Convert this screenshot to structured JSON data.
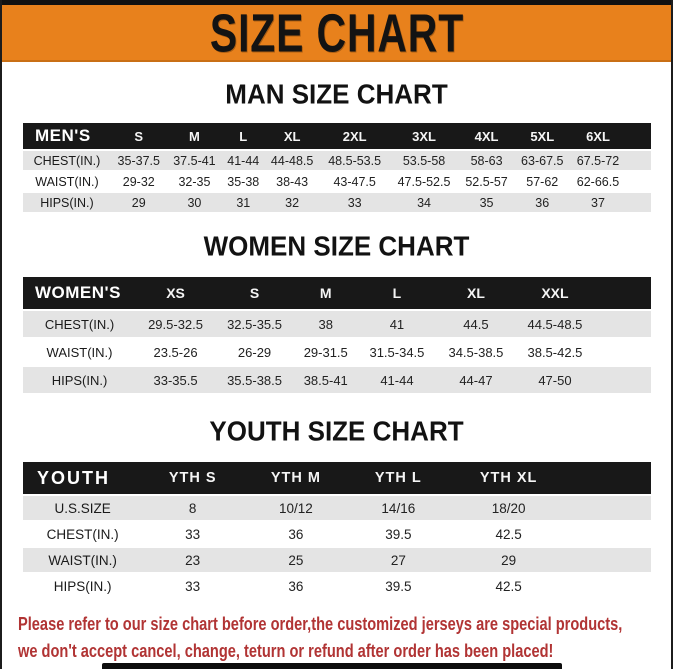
{
  "banner": {
    "title": "SIZE CHART",
    "bg_color": "#E8811C"
  },
  "sections": [
    {
      "id": "men",
      "heading": "MAN SIZE CHART",
      "table": {
        "header": [
          "MEN'S",
          "S",
          "M",
          "L",
          "XL",
          "2XL",
          "3XL",
          "4XL",
          "5XL",
          "6XL"
        ],
        "rows": [
          [
            "CHEST(IN.)",
            "35-37.5",
            "37.5-41",
            "41-44",
            "44-48.5",
            "48.5-53.5",
            "53.5-58",
            "58-63",
            "63-67.5",
            "67.5-72"
          ],
          [
            "WAIST(IN.)",
            "29-32",
            "32-35",
            "35-38",
            "38-43",
            "43-47.5",
            "47.5-52.5",
            "52.5-57",
            "57-62",
            "62-66.5"
          ],
          [
            "HIPS(IN.)",
            "29",
            "30",
            "31",
            "32",
            "33",
            "34",
            "35",
            "36",
            "37"
          ]
        ]
      }
    },
    {
      "id": "women",
      "heading": "WOMEN SIZE CHART",
      "table": {
        "header": [
          "WOMEN'S",
          "XS",
          "S",
          "M",
          "L",
          "XL",
          "XXL"
        ],
        "rows": [
          [
            "CHEST(IN.)",
            "29.5-32.5",
            "32.5-35.5",
            "38",
            "41",
            "44.5",
            "44.5-48.5"
          ],
          [
            "WAIST(IN.)",
            "23.5-26",
            "26-29",
            "29-31.5",
            "31.5-34.5",
            "34.5-38.5",
            "38.5-42.5"
          ],
          [
            "HIPS(IN.)",
            "33-35.5",
            "35.5-38.5",
            "38.5-41",
            "41-44",
            "44-47",
            "47-50"
          ]
        ]
      }
    },
    {
      "id": "youth",
      "heading": "YOUTH SIZE CHART",
      "table": {
        "header": [
          "YOUTH",
          "YTH S",
          "YTH M",
          "YTH L",
          "YTH XL"
        ],
        "rows": [
          [
            "U.S.SIZE",
            "8",
            "10/12",
            "14/16",
            "18/20"
          ],
          [
            "CHEST(IN.)",
            "33",
            "36",
            "39.5",
            "42.5"
          ],
          [
            "WAIST(IN.)",
            "23",
            "25",
            "27",
            "29"
          ],
          [
            "HIPS(IN.)",
            "33",
            "36",
            "39.5",
            "42.5"
          ]
        ]
      }
    }
  ],
  "disclaimer": {
    "line1": "Please refer to our size chart before order,the customized jerseys are special products,",
    "line2": "we don't accept cancel, change, teturn or refund after order has been placed!",
    "color": "#B13434"
  },
  "colors": {
    "banner_orange": "#E8811C",
    "table_header_black": "#181818",
    "row_alt_gray": "#E4E4E4",
    "disclaimer_red": "#B13434"
  }
}
